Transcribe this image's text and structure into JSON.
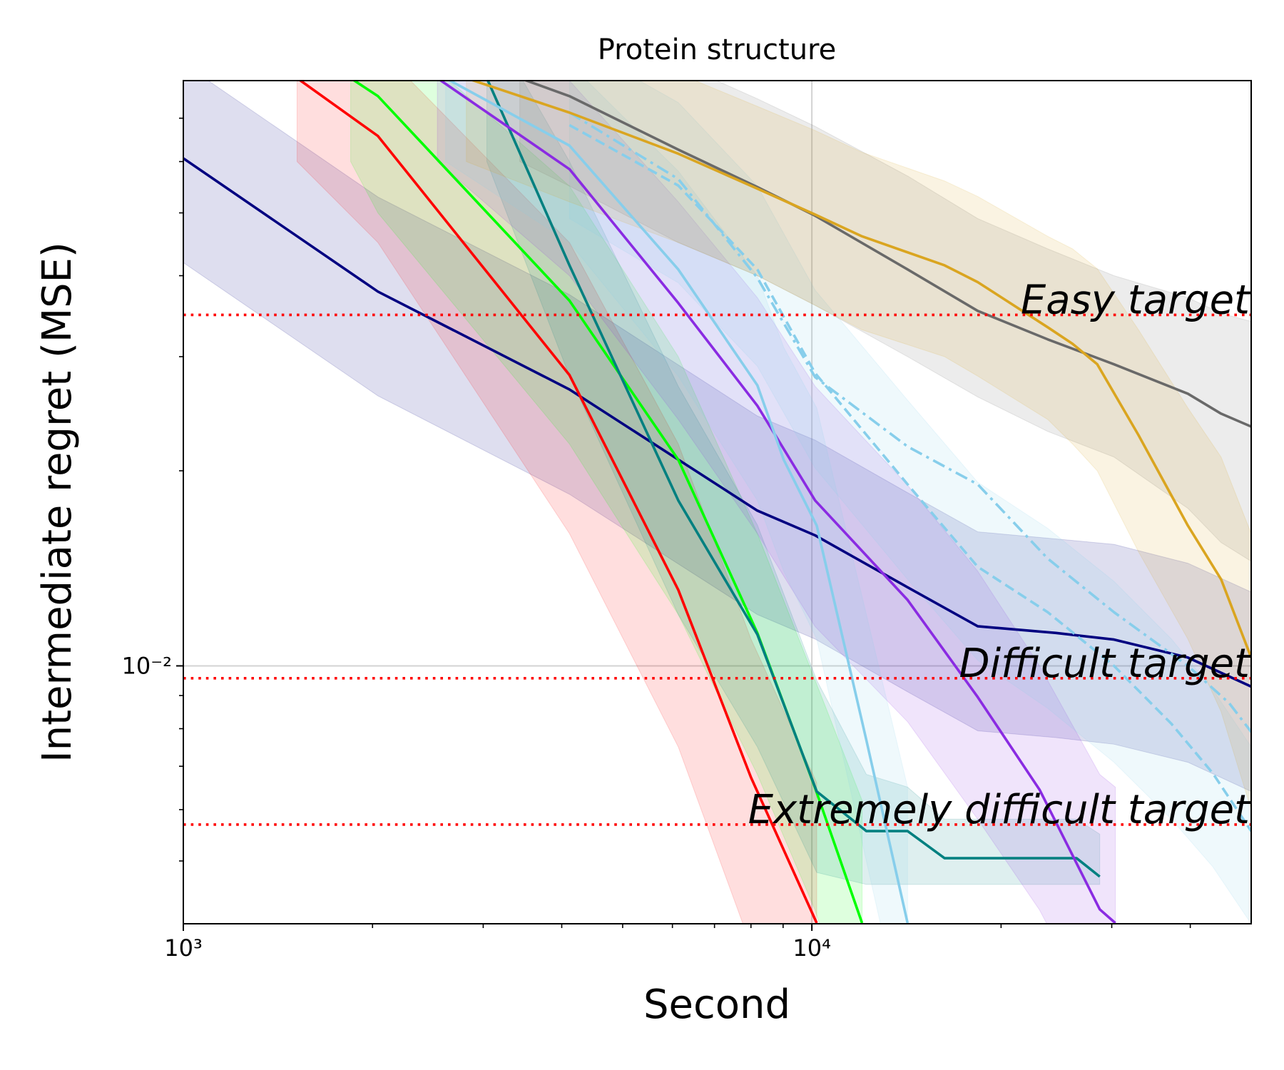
{
  "chart_data": {
    "type": "line",
    "title": "Protein structure",
    "x_label": "Second",
    "y_label": "Intermediate regret (MSE)",
    "xscale": "log",
    "yscale": "log",
    "grid": true,
    "xlim": [
      1000,
      50000
    ],
    "ylim": [
      0.004,
      0.08
    ],
    "xticks": [
      {
        "value": 1000,
        "label": "10³"
      },
      {
        "value": 10000,
        "label": "10⁴"
      }
    ],
    "yticks": [
      {
        "value": 0.01,
        "label": "10⁻²"
      }
    ],
    "hlines": [
      {
        "value": 0.0348,
        "label": "Easy target",
        "color": "#ff0000"
      },
      {
        "value": 0.00957,
        "label": "Difficult target",
        "color": "#ff0000"
      },
      {
        "value": 0.00569,
        "label": "Extremely difficult target",
        "color": "#ff0000"
      }
    ],
    "series": [
      {
        "color": "#000080",
        "x": [
          1000,
          2040,
          4115,
          8190,
          10120,
          14200,
          18360,
          24450,
          30250,
          39650,
          50000
        ],
        "values": [
          0.0607,
          0.0378,
          0.0267,
          0.01736,
          0.0159,
          0.01322,
          0.01151,
          0.01124,
          0.01098,
          0.0103,
          0.00929
        ],
        "upper": [
          0.085,
          0.0529,
          0.0374,
          0.0243,
          0.0223,
          0.0185,
          0.0161,
          0.0157,
          0.0154,
          0.0144,
          0.013
        ],
        "lower": [
          0.0419,
          0.0261,
          0.0184,
          0.012,
          0.011,
          0.00912,
          0.00794,
          0.00775,
          0.00757,
          0.0071,
          0.0064
        ]
      },
      {
        "color": "#ff0000",
        "x": [
          1517,
          2040,
          4115,
          6130,
          8000,
          10180
        ],
        "values": [
          0.0807,
          0.0657,
          0.0281,
          0.0131,
          0.00673,
          0.00401
        ],
        "upper": [
          0.1,
          0.09,
          0.045,
          0.022,
          0.011,
          0.0066
        ],
        "lower": [
          0.06,
          0.045,
          0.016,
          0.0075,
          0.0037,
          0.0023
        ]
      },
      {
        "color": "#00ff00",
        "x": [
          1846,
          2040,
          4115,
          6130,
          8190,
          10120,
          12020
        ],
        "values": [
          0.0807,
          0.0757,
          0.0366,
          0.0208,
          0.01124,
          0.00648,
          0.00401
        ],
        "upper": [
          0.1,
          0.1,
          0.055,
          0.03,
          0.016,
          0.0095,
          0.0062
        ],
        "lower": [
          0.06,
          0.05,
          0.022,
          0.012,
          0.0068,
          0.0042,
          0.0025
        ]
      },
      {
        "color": "#008080",
        "x": [
          3040,
          4115,
          6130,
          8190,
          10180,
          12210,
          14200,
          16260,
          26370,
          28710
        ],
        "values": [
          0.0807,
          0.0415,
          0.018,
          0.01118,
          0.0064,
          0.00556,
          0.00556,
          0.00505,
          0.00505,
          0.00473
        ],
        "upper": [
          0.1,
          0.06,
          0.027,
          0.0165,
          0.0095,
          0.0068,
          0.0065,
          0.0058,
          0.0058,
          0.0055
        ],
        "lower": [
          0.06,
          0.028,
          0.012,
          0.0075,
          0.0048,
          0.0046,
          0.0046,
          0.0046,
          0.0046,
          0.0046
        ]
      },
      {
        "color": "#8a2be2",
        "x": [
          2536,
          4115,
          6130,
          8190,
          10120,
          14200,
          18360,
          23030,
          28710,
          30400
        ],
        "values": [
          0.0807,
          0.0584,
          0.0363,
          0.0252,
          0.018,
          0.01264,
          0.00895,
          0.00644,
          0.00421,
          0.00401
        ],
        "upper": [
          0.1,
          0.08,
          0.052,
          0.037,
          0.027,
          0.019,
          0.014,
          0.01,
          0.0068,
          0.0065
        ],
        "lower": [
          0.06,
          0.04,
          0.024,
          0.016,
          0.0115,
          0.0082,
          0.0058,
          0.0042,
          0.0028,
          0.0026
        ]
      },
      {
        "color": "#87ceeb",
        "x": [
          2614,
          4115,
          6130,
          8190,
          9020,
          10180,
          12210,
          14200
        ],
        "values": [
          0.0807,
          0.0635,
          0.0409,
          0.0271,
          0.0208,
          0.01646,
          0.00768,
          0.00401
        ],
        "upper": [
          0.1,
          0.085,
          0.058,
          0.04,
          0.031,
          0.025,
          0.012,
          0.0065
        ],
        "lower": [
          0.06,
          0.045,
          0.028,
          0.018,
          0.014,
          0.011,
          0.005,
          0.0026
        ]
      },
      {
        "color": "#87ceeb",
        "dash": "dashed",
        "x": [
          4115,
          6130,
          8190,
          10120,
          14200,
          18360,
          23730,
          30250,
          37330,
          43430,
          50000
        ],
        "values": [
          0.0683,
          0.0551,
          0.0409,
          0.0283,
          0.01906,
          0.01422,
          0.0121,
          0.01,
          0.00814,
          0.00683,
          0.00556
        ],
        "upper": [
          0.092,
          0.074,
          0.055,
          0.038,
          0.0257,
          0.0192,
          0.0163,
          0.0135,
          0.011,
          0.0092,
          0.0075
        ],
        "lower": [
          0.049,
          0.039,
          0.029,
          0.0202,
          0.0136,
          0.0102,
          0.0086,
          0.0071,
          0.0058,
          0.0049,
          0.004
        ]
      },
      {
        "color": "#87ceeb",
        "dash": "dashdot",
        "x": [
          4115,
          6130,
          8190,
          10120,
          14200,
          18360,
          23730,
          30250,
          39650,
          46130,
          50000
        ],
        "values": [
          0.0714,
          0.0564,
          0.0397,
          0.0279,
          0.0218,
          0.01906,
          0.01464,
          0.0121,
          0.01,
          0.00876,
          0.00791
        ]
      },
      {
        "color": "#696969",
        "x": [
          3430,
          4115,
          6130,
          8190,
          10120,
          14200,
          18360,
          23730,
          30250,
          39650,
          44780,
          50000
        ],
        "values": [
          0.0807,
          0.0757,
          0.0626,
          0.0548,
          0.0495,
          0.0409,
          0.0353,
          0.0319,
          0.0292,
          0.0263,
          0.0245,
          0.0234
        ],
        "upper": [
          0.1,
          0.1,
          0.085,
          0.075,
          0.068,
          0.057,
          0.049,
          0.044,
          0.04,
          0.037,
          0.035,
          0.034
        ],
        "lower": [
          0.06,
          0.055,
          0.045,
          0.04,
          0.036,
          0.03,
          0.026,
          0.023,
          0.021,
          0.0175,
          0.0155,
          0.0145
        ]
      },
      {
        "color": "#daa520",
        "x": [
          2820,
          4115,
          6130,
          8190,
          10120,
          12020,
          16260,
          18360,
          23730,
          25990,
          28450,
          33090,
          39650,
          44780,
          50000
        ],
        "values": [
          0.0807,
          0.0714,
          0.0617,
          0.0545,
          0.0497,
          0.046,
          0.0415,
          0.0391,
          0.0333,
          0.0314,
          0.0292,
          0.0227,
          0.01646,
          0.0136,
          0.0103
        ],
        "upper": [
          0.1,
          0.095,
          0.082,
          0.073,
          0.067,
          0.062,
          0.056,
          0.053,
          0.046,
          0.044,
          0.041,
          0.033,
          0.025,
          0.021,
          0.016
        ],
        "lower": [
          0.06,
          0.052,
          0.045,
          0.04,
          0.036,
          0.033,
          0.03,
          0.028,
          0.024,
          0.022,
          0.02,
          0.015,
          0.011,
          0.0085,
          0.006
        ]
      }
    ]
  }
}
